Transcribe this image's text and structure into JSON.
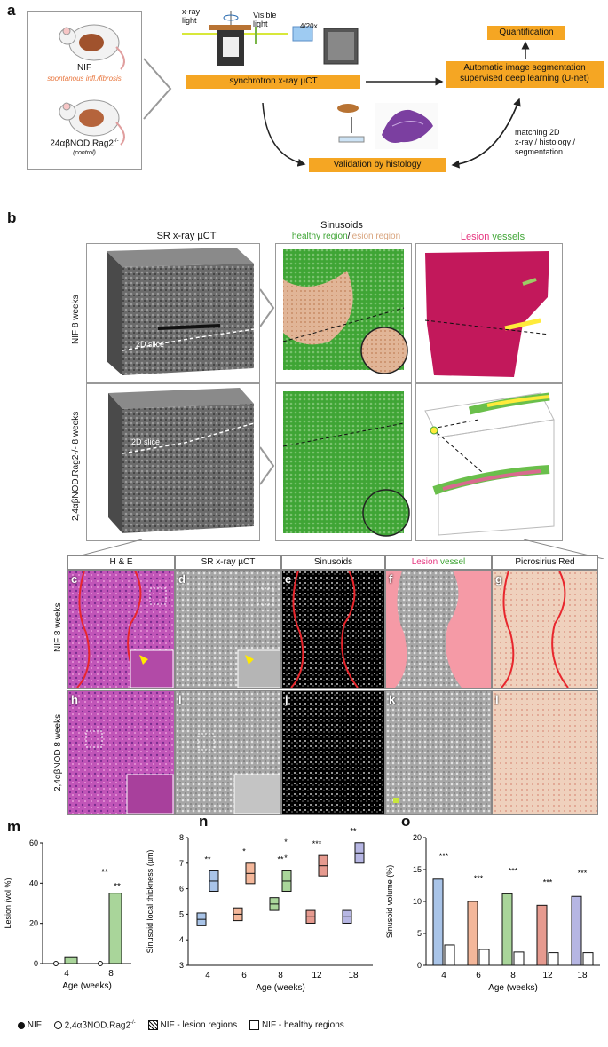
{
  "panel_labels": {
    "a": "a",
    "b": "b",
    "c": "c",
    "d": "d",
    "e": "e",
    "f": "f",
    "g": "g",
    "h": "h",
    "i": "i",
    "j": "j",
    "k": "k",
    "l": "l",
    "m": "m",
    "n": "n",
    "o": "o"
  },
  "panel_a": {
    "nif_label": "NIF",
    "nif_sub": "spontanous infl./fibrosis",
    "ctrl_label": "24αβNOD.Rag2",
    "ctrl_sup": "-/-",
    "ctrl_sub": "(control)",
    "xray_light": "x-ray\nlight",
    "visible_light": "Visible\nlight",
    "objective": "4/20x",
    "synchrotron": "synchrotron x-ray µCT",
    "quantification": "Quantification",
    "segmentation": "Automatic image segmentation\nsupervised deep learning (U-net)",
    "validation": "Validation by histology",
    "matching": "matching 2D\nx-ray / histology /\nsegmentation"
  },
  "panel_b": {
    "col1": "SR x-ray µCT",
    "col2_title": "Sinusoids",
    "col2_healthy": "healthy region",
    "col2_slash": "/",
    "col2_lesion": "lesion region",
    "col3_lesion": "Lesion",
    "col3_vessels": " vessels",
    "row1": "NIF 8 weeks",
    "row2": "2,4αβNOD.Rag2-/- 8 weeks",
    "slice1": "2D slice",
    "slice2": "2D slice"
  },
  "panel_cl": {
    "headers": [
      "H & E",
      "SR x-ray µCT",
      "Sinusoids",
      "Lesion",
      "vessel",
      "Picrosirius Red"
    ],
    "row1": "NIF 8 weeks",
    "row2": "2,4αβNOD 8 weeks"
  },
  "colors": {
    "orange": "#f5a623",
    "healthy_green": "#3fa535",
    "lesion_tan": "#d8a37c",
    "lesion_pink": "#e6357f",
    "vessel_green": "#4caf50",
    "m_green": "#a9d59a",
    "n_blue": "#a9c4e8",
    "n_orange": "#f4b79a",
    "n_green": "#a9d59a",
    "n_red": "#e69a8f",
    "n_purple": "#b6b6e3"
  },
  "chart_data": [
    {
      "type": "bar",
      "panel": "m",
      "ylabel": "Lesion (vol %)",
      "xlabel": "Age (weeks)",
      "ylim": [
        0,
        60
      ],
      "yticks": [
        0,
        20,
        40,
        60
      ],
      "categories": [
        "4",
        "8"
      ],
      "series": [
        {
          "name": "NIF",
          "values": [
            3,
            35
          ]
        },
        {
          "name": "2,4αβNOD.Rag2-/-",
          "values": [
            0,
            0
          ]
        }
      ],
      "significance": [
        "**",
        "**"
      ]
    },
    {
      "type": "box",
      "panel": "n",
      "ylabel": "Sinusoid local thickness (µm)",
      "xlabel": "Age (weeks)",
      "ylim": [
        3,
        8
      ],
      "yticks": [
        3,
        4,
        5,
        6,
        7,
        8
      ],
      "categories": [
        "4",
        "6",
        "8",
        "12",
        "18"
      ],
      "series": [
        {
          "name": "NIF - lesion regions",
          "values": [
            4.8,
            5.0,
            5.4,
            4.9,
            4.9
          ]
        },
        {
          "name": "NIF - healthy regions",
          "values": [
            6.3,
            6.6,
            6.3,
            6.9,
            7.4
          ]
        }
      ],
      "significance": [
        "**",
        "*",
        "**",
        "***",
        "**",
        "*",
        "*"
      ]
    },
    {
      "type": "bar",
      "panel": "o",
      "ylabel": "Sinusoid volume (%)",
      "xlabel": "Age (weeks)",
      "ylim": [
        0,
        20
      ],
      "yticks": [
        0,
        5,
        10,
        15,
        20
      ],
      "categories": [
        "4",
        "6",
        "8",
        "12",
        "18"
      ],
      "series": [
        {
          "name": "NIF - healthy regions",
          "values": [
            13.5,
            10,
            11.2,
            9.4,
            10.8
          ]
        },
        {
          "name": "NIF - lesion regions",
          "values": [
            3.2,
            2.5,
            2.1,
            2.0,
            2.0
          ]
        }
      ],
      "significance": [
        "***",
        "***",
        "***",
        "***",
        "***"
      ]
    }
  ],
  "legend": {
    "nif": "NIF",
    "ctrl": "2,4αβNOD.Rag2",
    "ctrl_sup": "-/-",
    "lesion": "NIF - lesion regions",
    "healthy": "NIF - healthy regions"
  }
}
